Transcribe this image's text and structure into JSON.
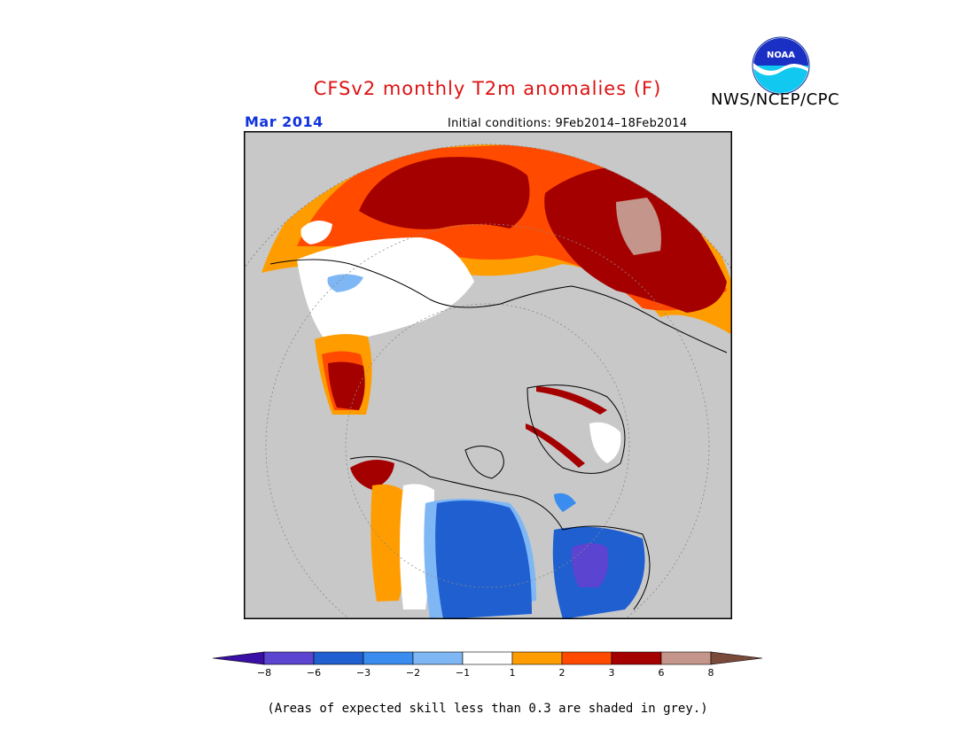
{
  "header": {
    "title": "CFSv2 monthly T2m anomalies (F)",
    "agency": "NWS/NCEP/CPC",
    "logo_text": "NOAA",
    "valid_month": "Mar 2014",
    "initial_conditions": "Initial conditions: 9Feb2014–18Feb2014"
  },
  "map": {
    "projection": "north polar stereographic",
    "background_grey": "#c8c8c8"
  },
  "legend": {
    "unit": "F",
    "boundaries": [
      "−8",
      "−6",
      "−3",
      "−2",
      "−1",
      "1",
      "2",
      "3",
      "6",
      "8"
    ],
    "colors": [
      "#3a0fa6",
      "#5a44d0",
      "#1f5fd0",
      "#3a8cef",
      "#7fb7f5",
      "#ffffff",
      "#ff9d00",
      "#ff4a00",
      "#a50000",
      "#c4958a",
      "#7a4a3a"
    ]
  },
  "footnote": "(Areas of expected skill less than 0.3 are shaded in grey.)"
}
